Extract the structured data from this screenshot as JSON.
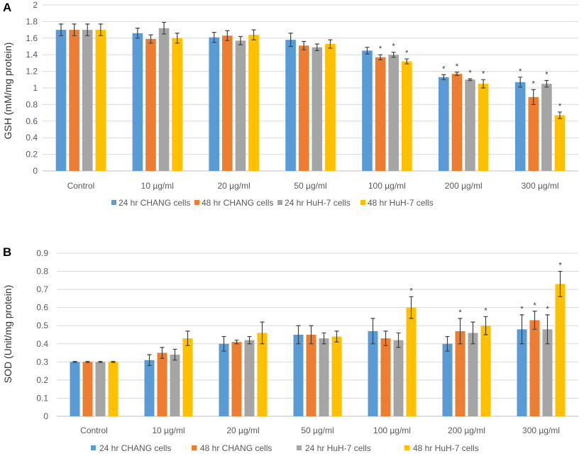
{
  "chart_data": [
    {
      "panel_label": "A",
      "type": "bar",
      "ylabel": "GSH (mM/mg protein)",
      "ylim": [
        0,
        2
      ],
      "yticks": [
        "0",
        "0.2",
        "0.4",
        "0.6",
        "0.8",
        "1",
        "1.2",
        "1.4",
        "1.6",
        "1.8",
        "2"
      ],
      "ytick_values": [
        0,
        0.2,
        0.4,
        0.6,
        0.8,
        1.0,
        1.2,
        1.4,
        1.6,
        1.8,
        2.0
      ],
      "categories": [
        "Control",
        "10 µg/ml",
        "20 µg/ml",
        "50 µg/ml",
        "100 µg/ml",
        "200 µg/ml",
        "300 µg/ml"
      ],
      "legend_position": "bottom",
      "series": [
        {
          "name": "24 hr CHANG cells",
          "color": "#5b9bd5",
          "values": [
            1.7,
            1.66,
            1.61,
            1.58,
            1.45,
            1.13,
            1.07
          ],
          "errors": [
            0.07,
            0.06,
            0.06,
            0.08,
            0.04,
            0.03,
            0.06
          ],
          "significant": [
            false,
            false,
            false,
            false,
            false,
            true,
            true
          ]
        },
        {
          "name": "48 hr CHANG cells",
          "color": "#ed7d31",
          "values": [
            1.7,
            1.59,
            1.63,
            1.51,
            1.37,
            1.17,
            0.89
          ],
          "errors": [
            0.07,
            0.05,
            0.06,
            0.05,
            0.03,
            0.02,
            0.09
          ],
          "significant": [
            false,
            false,
            false,
            false,
            true,
            true,
            true
          ]
        },
        {
          "name": "24 hr HuH-7 cells",
          "color": "#a5a5a5",
          "values": [
            1.7,
            1.72,
            1.57,
            1.49,
            1.4,
            1.1,
            1.05
          ],
          "errors": [
            0.07,
            0.07,
            0.05,
            0.04,
            0.03,
            0.01,
            0.04
          ],
          "significant": [
            false,
            false,
            false,
            false,
            true,
            true,
            true
          ]
        },
        {
          "name": "48 hr HuH-7 cells",
          "color": "#ffc000",
          "values": [
            1.7,
            1.6,
            1.64,
            1.53,
            1.32,
            1.05,
            0.67
          ],
          "errors": [
            0.07,
            0.06,
            0.06,
            0.05,
            0.03,
            0.05,
            0.04
          ],
          "significant": [
            false,
            false,
            false,
            false,
            true,
            true,
            true
          ]
        }
      ],
      "significance_marker": "*"
    },
    {
      "panel_label": "B",
      "type": "bar",
      "ylabel": "SOD (Unit/mg protein)",
      "ylim": [
        0,
        0.9
      ],
      "yticks": [
        "0",
        "0.1",
        "0.2",
        "0.3",
        "0.4",
        "0.5",
        "0.6",
        "0.7",
        "0.8",
        "0.9"
      ],
      "ytick_values": [
        0,
        0.1,
        0.2,
        0.3,
        0.4,
        0.5,
        0.6,
        0.7,
        0.8,
        0.9
      ],
      "categories": [
        "Control",
        "10 µg/ml",
        "20 µg/ml",
        "50 µg/ml",
        "100 µg/ml",
        "200 µg/ml",
        "300 µg/ml"
      ],
      "legend_position": "bottom",
      "series": [
        {
          "name": "24 hr CHANG cells",
          "color": "#5b9bd5",
          "values": [
            0.3,
            0.31,
            0.4,
            0.45,
            0.47,
            0.4,
            0.48
          ],
          "errors": [
            0.003,
            0.03,
            0.04,
            0.05,
            0.07,
            0.04,
            0.08
          ],
          "significant": [
            false,
            false,
            false,
            false,
            false,
            false,
            true
          ]
        },
        {
          "name": "48 hr CHANG cells",
          "color": "#ed7d31",
          "values": [
            0.3,
            0.35,
            0.41,
            0.45,
            0.43,
            0.47,
            0.53
          ],
          "errors": [
            0.003,
            0.03,
            0.01,
            0.05,
            0.04,
            0.07,
            0.05
          ],
          "significant": [
            false,
            false,
            false,
            false,
            false,
            true,
            true
          ]
        },
        {
          "name": "24 hr HuH-7 cells",
          "color": "#a5a5a5",
          "values": [
            0.3,
            0.34,
            0.42,
            0.43,
            0.42,
            0.46,
            0.48
          ],
          "errors": [
            0.003,
            0.03,
            0.02,
            0.03,
            0.04,
            0.06,
            0.08
          ],
          "significant": [
            false,
            false,
            false,
            false,
            false,
            false,
            true
          ]
        },
        {
          "name": "48 hr HuH-7 cells",
          "color": "#ffc000",
          "values": [
            0.3,
            0.43,
            0.46,
            0.44,
            0.6,
            0.5,
            0.73
          ],
          "errors": [
            0.003,
            0.04,
            0.06,
            0.03,
            0.06,
            0.05,
            0.07
          ],
          "significant": [
            false,
            false,
            false,
            false,
            true,
            true,
            true
          ]
        }
      ],
      "significance_marker": "*"
    }
  ]
}
